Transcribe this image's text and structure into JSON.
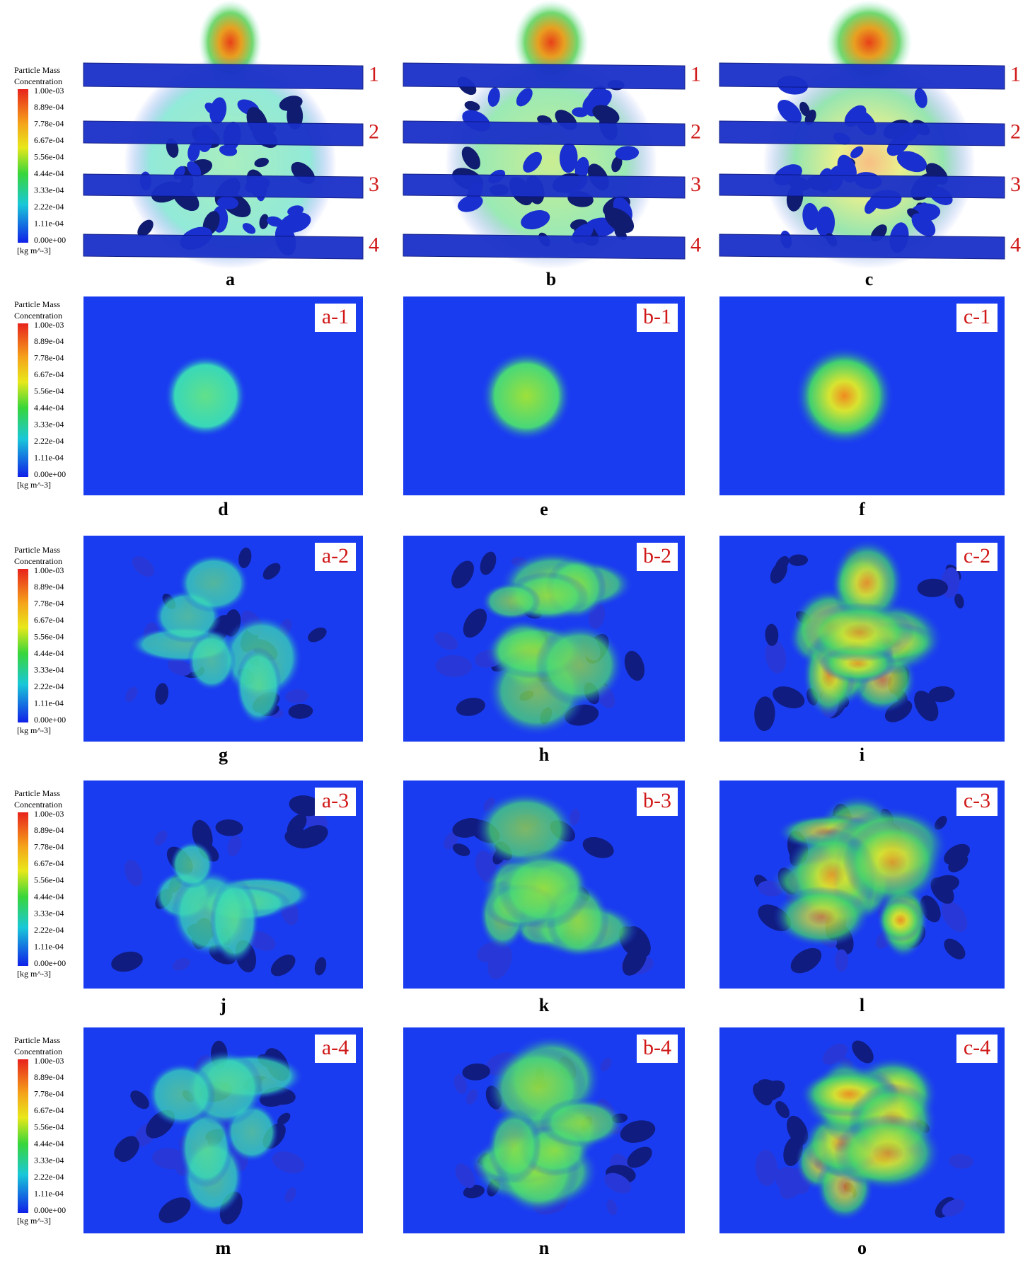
{
  "legend": {
    "title": [
      "Particle Mass",
      "Concentration"
    ],
    "ticks": [
      "1.00e-03",
      "8.89e-04",
      "7.78e-04",
      "6.67e-04",
      "5.56e-04",
      "4.44e-04",
      "3.33e-04",
      "2.22e-04",
      "1.11e-04",
      "0.00e+00"
    ],
    "unit": "[kg m^-3]"
  },
  "rows": [
    {
      "planes": [
        "1",
        "2",
        "3",
        "4"
      ],
      "panels": [
        {
          "label": "a"
        },
        {
          "label": "b"
        },
        {
          "label": "c"
        }
      ]
    },
    {
      "panels": [
        {
          "label": "d",
          "tag": "a-1"
        },
        {
          "label": "e",
          "tag": "b-1"
        },
        {
          "label": "f",
          "tag": "c-1"
        }
      ]
    },
    {
      "panels": [
        {
          "label": "g",
          "tag": "a-2"
        },
        {
          "label": "h",
          "tag": "b-2"
        },
        {
          "label": "i",
          "tag": "c-2"
        }
      ]
    },
    {
      "panels": [
        {
          "label": "j",
          "tag": "a-3"
        },
        {
          "label": "k",
          "tag": "b-3"
        },
        {
          "label": "l",
          "tag": "c-3"
        }
      ]
    },
    {
      "panels": [
        {
          "label": "m",
          "tag": "a-4"
        },
        {
          "label": "n",
          "tag": "b-4"
        },
        {
          "label": "o",
          "tag": "c-4"
        }
      ]
    }
  ]
}
